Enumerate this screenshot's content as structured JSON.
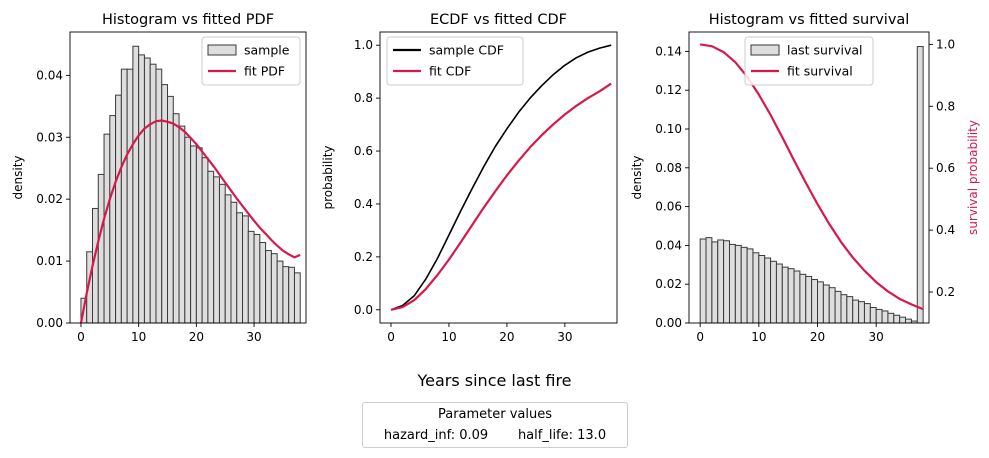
{
  "figure": {
    "xlabel": "Years since last fire",
    "legend": {
      "title": "Parameter values",
      "items": [
        {
          "label": "hazard_inf: 0.09"
        },
        {
          "label": "half_life: 13.0"
        }
      ]
    }
  },
  "colors": {
    "fit": "#d6194a",
    "bar_fill": "#dedede",
    "bar_edge": "#3a3a3a",
    "sample_line": "#000000",
    "axis_right_label": "#d6194a"
  },
  "chart_data": [
    {
      "type": "bar",
      "title": "Histogram vs fitted PDF",
      "xlabel": "",
      "ylabel": "density",
      "xlim": [
        -1.9,
        39.0
      ],
      "ylim": [
        0,
        0.047
      ],
      "xticks": [
        0,
        10,
        20,
        30
      ],
      "yticks": [
        0.0,
        0.01,
        0.02,
        0.03,
        0.04
      ],
      "ytick_labels": [
        "0.00",
        "0.01",
        "0.02",
        "0.03",
        "0.04"
      ],
      "bin_width": 1,
      "bins_start": 0,
      "series": [
        {
          "name": "sample",
          "kind": "bar",
          "values": [
            0.004,
            0.0115,
            0.0185,
            0.024,
            0.0305,
            0.0335,
            0.0368,
            0.041,
            0.041,
            0.0447,
            0.0433,
            0.0428,
            0.0418,
            0.041,
            0.0385,
            0.0366,
            0.0338,
            0.0318,
            0.03,
            0.0286,
            0.0283,
            0.0267,
            0.0245,
            0.0236,
            0.0224,
            0.0207,
            0.0195,
            0.0178,
            0.0173,
            0.0148,
            0.0143,
            0.013,
            0.0117,
            0.0112,
            0.01,
            0.0091,
            0.009,
            0.0081
          ]
        },
        {
          "name": "fit PDF",
          "kind": "line",
          "x": [
            0,
            1,
            2,
            3,
            4,
            5,
            6,
            7,
            8,
            9,
            10,
            11,
            12,
            13,
            14,
            15,
            16,
            17,
            18,
            19,
            20,
            21,
            22,
            23,
            24,
            25,
            26,
            27,
            28,
            29,
            30,
            31,
            32,
            33,
            34,
            35,
            36,
            37,
            38
          ],
          "y": [
            0.0,
            0.0048,
            0.0092,
            0.0132,
            0.0168,
            0.02,
            0.0228,
            0.0252,
            0.0272,
            0.0289,
            0.0303,
            0.0314,
            0.0321,
            0.0326,
            0.0327,
            0.0325,
            0.0322,
            0.0316,
            0.0309,
            0.0299,
            0.0289,
            0.0277,
            0.0265,
            0.0253,
            0.024,
            0.0227,
            0.0214,
            0.0201,
            0.0189,
            0.0177,
            0.0165,
            0.0154,
            0.0144,
            0.0134,
            0.0125,
            0.0117,
            0.0111,
            0.0106,
            0.011
          ]
        }
      ],
      "legend": "upper right"
    },
    {
      "type": "line",
      "title": "ECDF vs fitted CDF",
      "xlabel": "",
      "ylabel": "probability",
      "xlim": [
        -1.9,
        39.0
      ],
      "ylim": [
        -0.05,
        1.05
      ],
      "xticks": [
        0,
        10,
        20,
        30
      ],
      "yticks": [
        0.0,
        0.2,
        0.4,
        0.6,
        0.8,
        1.0
      ],
      "ytick_labels": [
        "0.0",
        "0.2",
        "0.4",
        "0.6",
        "0.8",
        "1.0"
      ],
      "series": [
        {
          "name": "sample CDF",
          "x": [
            0,
            2,
            4,
            6,
            8,
            10,
            12,
            14,
            16,
            18,
            20,
            22,
            24,
            26,
            28,
            30,
            32,
            34,
            36,
            38
          ],
          "y": [
            0.0,
            0.016,
            0.053,
            0.116,
            0.194,
            0.283,
            0.372,
            0.458,
            0.541,
            0.617,
            0.684,
            0.746,
            0.8,
            0.847,
            0.889,
            0.924,
            0.953,
            0.974,
            0.989,
            1.0
          ]
        },
        {
          "name": "fit CDF",
          "x": [
            0,
            2,
            4,
            6,
            8,
            10,
            12,
            14,
            16,
            18,
            20,
            22,
            24,
            26,
            28,
            30,
            32,
            34,
            36,
            38
          ],
          "y": [
            0.0,
            0.01,
            0.036,
            0.078,
            0.131,
            0.19,
            0.254,
            0.32,
            0.386,
            0.448,
            0.508,
            0.563,
            0.614,
            0.66,
            0.701,
            0.738,
            0.771,
            0.8,
            0.826,
            0.855
          ]
        }
      ],
      "legend": "upper left"
    },
    {
      "type": "bar",
      "title": "Histogram vs fitted survival",
      "xlabel": "",
      "ylabel": "density",
      "ylabel_right": "survival probability",
      "xlim": [
        -1.9,
        39.0
      ],
      "ylim": [
        0,
        0.15
      ],
      "ylim_right": [
        0.1,
        1.04
      ],
      "xticks": [
        0,
        10,
        20,
        30
      ],
      "yticks": [
        0.0,
        0.02,
        0.04,
        0.06,
        0.08,
        0.1,
        0.12,
        0.14
      ],
      "ytick_labels": [
        "0.00",
        "0.02",
        "0.04",
        "0.06",
        "0.08",
        "0.10",
        "0.12",
        "0.14"
      ],
      "yticks_right": [
        0.2,
        0.4,
        0.6,
        0.8,
        1.0
      ],
      "ytick_labels_right": [
        "0.2",
        "0.4",
        "0.6",
        "0.8",
        "1.0"
      ],
      "bin_width": 1,
      "bins_start": 0,
      "series": [
        {
          "name": "last survival",
          "kind": "bar",
          "values": [
            0.0433,
            0.044,
            0.0418,
            0.0428,
            0.0424,
            0.0405,
            0.04,
            0.039,
            0.0382,
            0.0362,
            0.0348,
            0.0335,
            0.0318,
            0.0304,
            0.0288,
            0.028,
            0.0268,
            0.0251,
            0.024,
            0.0224,
            0.0212,
            0.0196,
            0.0182,
            0.0163,
            0.0146,
            0.0136,
            0.0118,
            0.011,
            0.01,
            0.008,
            0.007,
            0.0062,
            0.005,
            0.004,
            0.003,
            0.002,
            0.001,
            0.1425
          ]
        },
        {
          "name": "fit survival",
          "kind": "line",
          "axis": "right",
          "x": [
            0,
            2,
            4,
            6,
            8,
            10,
            12,
            14,
            16,
            18,
            20,
            22,
            24,
            26,
            28,
            30,
            32,
            34,
            36,
            38
          ],
          "y": [
            1.0,
            0.994,
            0.975,
            0.942,
            0.896,
            0.838,
            0.772,
            0.7,
            0.626,
            0.553,
            0.484,
            0.42,
            0.362,
            0.312,
            0.269,
            0.232,
            0.202,
            0.178,
            0.16,
            0.145
          ]
        }
      ],
      "legend": "upper center"
    }
  ]
}
